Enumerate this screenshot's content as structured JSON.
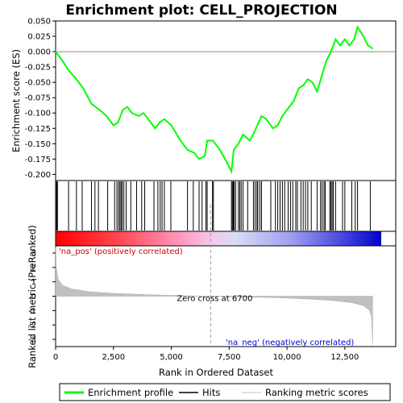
{
  "chart_data": {
    "type": "line",
    "title": "Enrichment plot: CELL_PROJECTION",
    "xlabel": "Rank in Ordered Dataset",
    "ylabel_top": "Enrichment score (ES)",
    "ylabel_bottom": "Ranked list metric (PreRanked)",
    "x_range": [
      0,
      14700
    ],
    "x_ticks": [
      0,
      2500,
      5000,
      7500,
      10000,
      12500
    ],
    "x_tick_labels": [
      "0",
      "2,500",
      "5,000",
      "7,500",
      "10,000",
      "12,500"
    ],
    "es_range": [
      -0.21,
      0.05
    ],
    "es_ticks": [
      0.05,
      0.025,
      0.0,
      -0.025,
      -0.05,
      -0.075,
      -0.1,
      -0.125,
      -0.15,
      -0.175,
      -0.2
    ],
    "es_tick_labels": [
      "0.050",
      "0.025",
      "0.000",
      "-0.025",
      "-0.050",
      "-0.075",
      "-0.100",
      "-0.125",
      "-0.150",
      "-0.175",
      "-0.200"
    ],
    "metric_range": [
      -3.5,
      3.5
    ],
    "metric_ticks": [
      3,
      2,
      1,
      0,
      -1,
      -2,
      -3
    ],
    "metric_tick_labels": [
      "3",
      "2",
      "1",
      "0",
      "-1",
      "-2",
      "-3"
    ],
    "zero_cross": 6700,
    "zero_cross_label": "Zero cross at 6700",
    "pos_label": "'na_pos' (positively correlated)",
    "neg_label": "'na_neg' (negatively correlated)",
    "series": [
      {
        "name": "Enrichment profile",
        "color": "#00ff00",
        "points": [
          [
            0,
            0.0
          ],
          [
            300,
            -0.015
          ],
          [
            550,
            -0.03
          ],
          [
            900,
            -0.045
          ],
          [
            1200,
            -0.06
          ],
          [
            1550,
            -0.085
          ],
          [
            1900,
            -0.095
          ],
          [
            2200,
            -0.105
          ],
          [
            2500,
            -0.12
          ],
          [
            2700,
            -0.115
          ],
          [
            2900,
            -0.095
          ],
          [
            3100,
            -0.09
          ],
          [
            3300,
            -0.1
          ],
          [
            3600,
            -0.105
          ],
          [
            3800,
            -0.1
          ],
          [
            4100,
            -0.115
          ],
          [
            4300,
            -0.125
          ],
          [
            4500,
            -0.115
          ],
          [
            4700,
            -0.11
          ],
          [
            5000,
            -0.12
          ],
          [
            5400,
            -0.145
          ],
          [
            5700,
            -0.16
          ],
          [
            6000,
            -0.165
          ],
          [
            6200,
            -0.175
          ],
          [
            6450,
            -0.17
          ],
          [
            6550,
            -0.145
          ],
          [
            6800,
            -0.145
          ],
          [
            7100,
            -0.16
          ],
          [
            7400,
            -0.18
          ],
          [
            7600,
            -0.195
          ],
          [
            7700,
            -0.16
          ],
          [
            7900,
            -0.15
          ],
          [
            8100,
            -0.135
          ],
          [
            8400,
            -0.145
          ],
          [
            8600,
            -0.13
          ],
          [
            8900,
            -0.105
          ],
          [
            9100,
            -0.11
          ],
          [
            9400,
            -0.125
          ],
          [
            9600,
            -0.12
          ],
          [
            9800,
            -0.105
          ],
          [
            10100,
            -0.09
          ],
          [
            10300,
            -0.08
          ],
          [
            10500,
            -0.06
          ],
          [
            10700,
            -0.055
          ],
          [
            10900,
            -0.045
          ],
          [
            11100,
            -0.05
          ],
          [
            11300,
            -0.065
          ],
          [
            11500,
            -0.04
          ],
          [
            11700,
            -0.015
          ],
          [
            11900,
            0.0
          ],
          [
            12100,
            0.02
          ],
          [
            12300,
            0.01
          ],
          [
            12500,
            0.02
          ],
          [
            12700,
            0.01
          ],
          [
            12900,
            0.02
          ],
          [
            13050,
            0.04
          ],
          [
            13300,
            0.025
          ],
          [
            13500,
            0.01
          ],
          [
            13700,
            0.005
          ]
        ]
      }
    ],
    "hits": [
      40,
      60,
      80,
      560,
      900,
      1150,
      1550,
      1700,
      1850,
      2250,
      2550,
      2650,
      2720,
      2780,
      2830,
      2880,
      2950,
      3050,
      3250,
      3500,
      3720,
      3850,
      4250,
      4420,
      4520,
      4600,
      4700,
      4980,
      5700,
      5950,
      6200,
      6330,
      6500,
      6550,
      6780,
      6820,
      7600,
      7640,
      7680,
      7720,
      7780,
      7900,
      7960,
      8020,
      8100,
      8300,
      8550,
      8620,
      8700,
      8740,
      8830,
      8900,
      9300,
      9500,
      9600,
      9700,
      9800,
      9900,
      10050,
      10150,
      10250,
      10380,
      10450,
      10600,
      10700,
      10800,
      10900,
      11050,
      11300,
      11450,
      11520,
      11600,
      11650,
      11850,
      11900,
      11950,
      12000,
      12100,
      12400,
      12500,
      12800,
      12950,
      13050,
      13600
    ],
    "metric_profile": [
      [
        0,
        3.4
      ],
      [
        30,
        2.0
      ],
      [
        100,
        1.2
      ],
      [
        300,
        0.75
      ],
      [
        700,
        0.5
      ],
      [
        1500,
        0.3
      ],
      [
        2500,
        0.2
      ],
      [
        4000,
        0.1
      ],
      [
        5500,
        0.04
      ],
      [
        6700,
        0.0
      ],
      [
        8000,
        -0.05
      ],
      [
        9500,
        -0.1
      ],
      [
        11000,
        -0.2
      ],
      [
        12000,
        -0.3
      ],
      [
        12800,
        -0.45
      ],
      [
        13300,
        -0.65
      ],
      [
        13550,
        -0.95
      ],
      [
        13650,
        -1.4
      ],
      [
        13700,
        -3.4
      ]
    ],
    "legend": [
      {
        "label": "Enrichment profile",
        "color": "#00ff00"
      },
      {
        "label": "Hits",
        "color": "#000000"
      },
      {
        "label": "Ranking metric scores",
        "color": "#c0c0c0"
      }
    ]
  }
}
